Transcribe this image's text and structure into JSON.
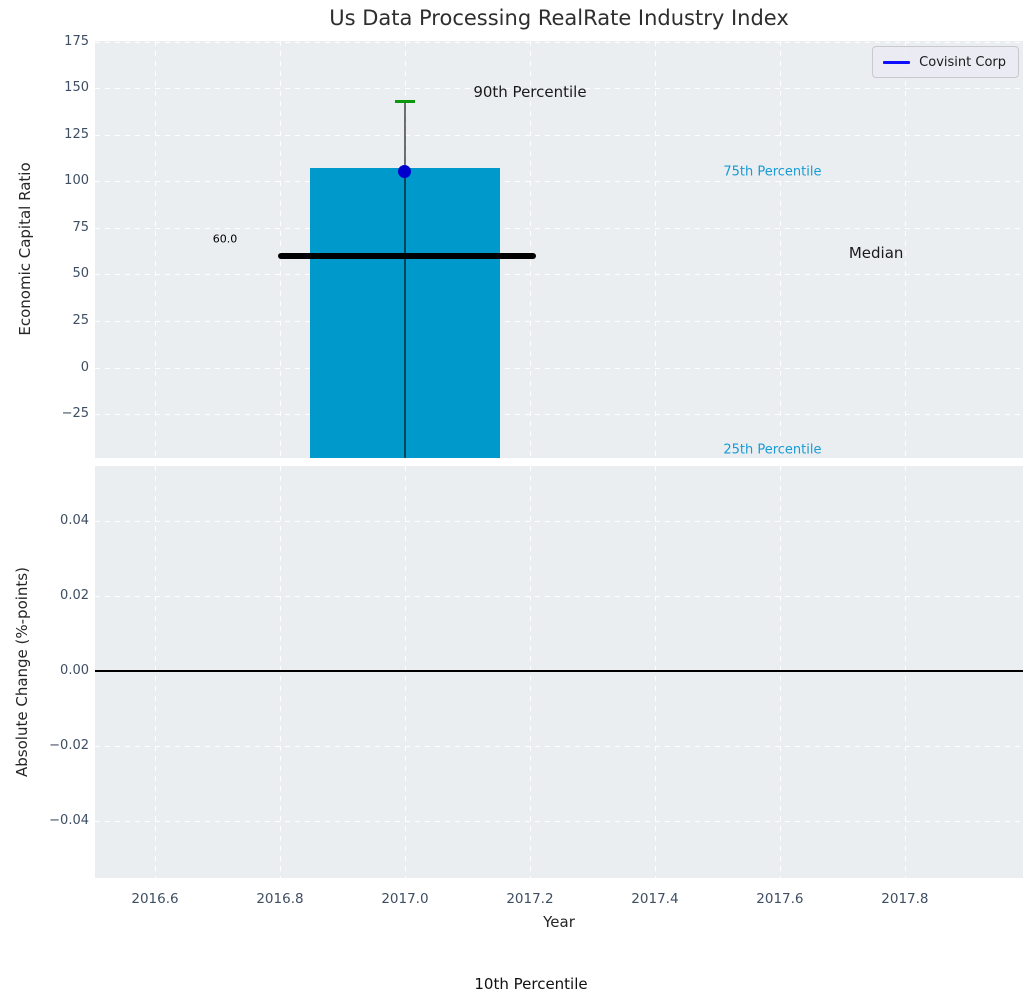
{
  "legend": {
    "label": "Covisint Corp",
    "line_color": "#0f0fff"
  },
  "colors": {
    "axes_bg": "#eaeef1",
    "grid": "#ffffff",
    "tick_text": "#3e4e63",
    "axis_label_text": "#262626",
    "title_text": "#2e2e2e",
    "annotation_text": "#1a1a1a",
    "percentile_text": "#169bd5",
    "bar": "#0099cc",
    "whisker": "rgba(0,0,0,0.55)",
    "p90_cap": "#0c970c",
    "company_point": "#0000cc",
    "median_line": "#000000",
    "zero_line": "#000000"
  },
  "chart_data": {
    "type": "bar",
    "title": "Us Data Processing RealRate Industry Index",
    "xlabel": "Year",
    "footer_annotation": "10th Percentile",
    "x": {
      "lim": [
        2016.504,
        2017.989
      ],
      "ticks": [
        2016.6,
        2016.8,
        2017.0,
        2017.2,
        2017.4,
        2017.6,
        2017.8
      ],
      "tick_labels": [
        "2016.6",
        "2016.8",
        "2017.0",
        "2017.2",
        "2017.4",
        "2017.6",
        "2017.8"
      ]
    },
    "panels": [
      {
        "id": "top",
        "ylabel": "Economic Capital Ratio",
        "ylim": [
          -48.5,
          175.3
        ],
        "yticks": [
          175,
          150,
          125,
          100,
          75,
          50,
          25,
          0,
          -25
        ],
        "ytick_labels": [
          "175",
          "150",
          "125",
          "100",
          "75",
          "50",
          "25",
          "0",
          "−25"
        ],
        "percentile_bar": {
          "x_center": 2017.0,
          "x_halfwidth": 0.152,
          "top_value_75th": 107,
          "bottom_clipped_at": -48.5,
          "color": "#0099cc"
        },
        "median": {
          "value": 60.0,
          "label": "60.0",
          "x_start": 2016.797,
          "x_end": 2017.21
        },
        "p90_whisker": {
          "x": 2017.0,
          "top_value_90th": 142.8,
          "cap_halfwidth": 0.016
        },
        "company_point": {
          "x": 2017.0,
          "y": 105.5
        },
        "annotations": [
          {
            "x": 2017.2,
            "y": 147.8,
            "text": "90th Percentile",
            "style": "big"
          },
          {
            "x": 2016.712,
            "y": 68.8,
            "text": "60.0",
            "style": "small"
          },
          {
            "x": 2017.588,
            "y": 104.8,
            "text": "75th Percentile",
            "style": "cyan"
          },
          {
            "x": 2017.754,
            "y": 61.3,
            "text": "Median",
            "style": "big"
          },
          {
            "x": 2017.588,
            "y": -44.2,
            "text": "25th Percentile",
            "style": "cyan"
          }
        ]
      },
      {
        "id": "bottom",
        "ylabel": "Absolute Change (%-points)",
        "ylim": [
          -0.0552,
          0.0547
        ],
        "yticks": [
          0.04,
          0.02,
          0.0,
          -0.02,
          -0.04
        ],
        "ytick_labels": [
          "0.04",
          "0.02",
          "0.00",
          "−0.02",
          "−0.04"
        ],
        "zero_line_value": 0.0
      }
    ]
  }
}
